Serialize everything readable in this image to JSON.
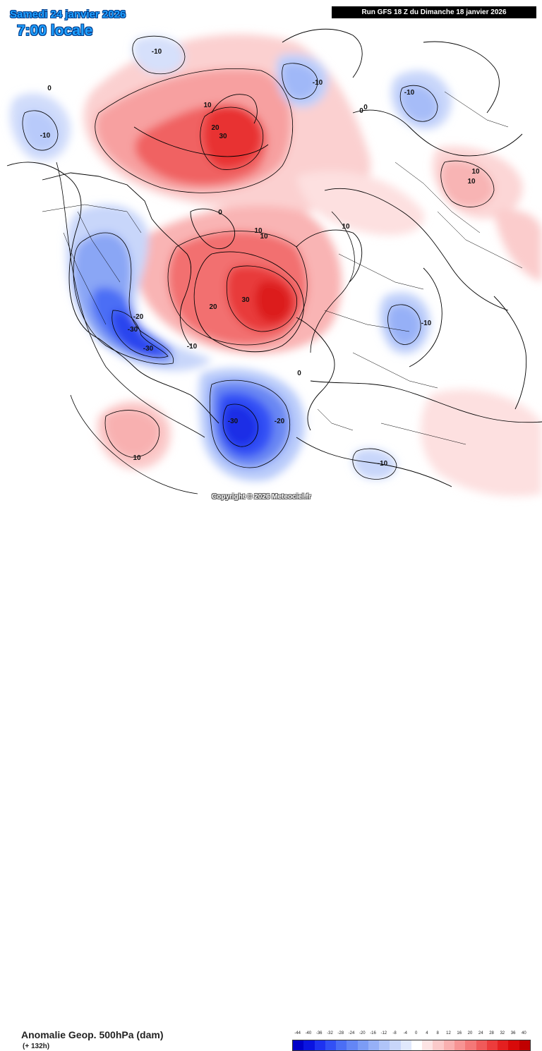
{
  "header": {
    "valid_date": "Samedi 24 janvier 2026",
    "valid_time": "7:00 locale",
    "run_info": "Run GFS 18 Z du Dimanche 18 janvier 2026"
  },
  "footer": {
    "title": "Anomalie Geop. 500hPa (dam)",
    "forecast_step": "(+ 132h)",
    "copyright": "Copyright © 2026 Meteociel.fr"
  },
  "legend": {
    "labels": [
      "-44",
      "-40",
      "-36",
      "-32",
      "-28",
      "-24",
      "-20",
      "-16",
      "-12",
      "-8",
      "-4",
      "0",
      "4",
      "8",
      "12",
      "16",
      "20",
      "24",
      "28",
      "32",
      "36",
      "40"
    ],
    "colors": [
      "#0000c8",
      "#0a14e0",
      "#1e32f0",
      "#3250f5",
      "#4b6ef5",
      "#6486f5",
      "#7c9cf5",
      "#96b0f7",
      "#b0c4f8",
      "#c8d6fa",
      "#e0e8fc",
      "#ffffff",
      "#fde4e4",
      "#fbcaca",
      "#f9b0b0",
      "#f79494",
      "#f47878",
      "#f05a5a",
      "#ec3c3c",
      "#e42020",
      "#d80a0a",
      "#c00000"
    ]
  },
  "contour_labels": [
    {
      "text": "-10"
    },
    {
      "text": "10"
    },
    {
      "text": "-10"
    },
    {
      "text": "0"
    },
    {
      "text": "0"
    },
    {
      "text": "-10"
    },
    {
      "text": "-10"
    },
    {
      "text": "0"
    },
    {
      "text": "20"
    },
    {
      "text": "30"
    },
    {
      "text": "10"
    },
    {
      "text": "10"
    },
    {
      "text": "10"
    },
    {
      "text": "0"
    },
    {
      "text": "10"
    },
    {
      "text": "10"
    },
    {
      "text": "30"
    },
    {
      "text": "20"
    },
    {
      "text": "-20"
    },
    {
      "text": "-30"
    },
    {
      "text": "-30"
    },
    {
      "text": "-10"
    },
    {
      "text": "-10"
    },
    {
      "text": "0"
    },
    {
      "text": "-30"
    },
    {
      "text": "-20"
    },
    {
      "text": "10"
    },
    {
      "text": "-10"
    }
  ]
}
